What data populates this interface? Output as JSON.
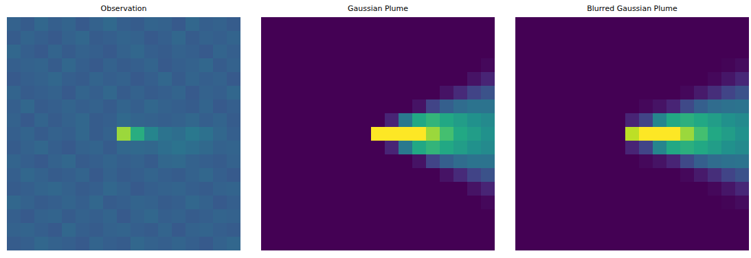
{
  "chart_data": [
    {
      "type": "heatmap",
      "title": "Observation",
      "tick_labels": false,
      "zlim": [
        0,
        1
      ],
      "cells": [
        [
          0.31,
          0.29,
          0.33,
          0.3,
          0.32,
          0.28,
          0.31,
          0.34,
          0.3,
          0.29,
          0.32,
          0.31,
          0.28,
          0.33,
          0.3,
          0.31,
          0.29
        ],
        [
          0.29,
          0.32,
          0.3,
          0.28,
          0.31,
          0.33,
          0.29,
          0.3,
          0.32,
          0.31,
          0.28,
          0.3,
          0.33,
          0.29,
          0.31,
          0.3,
          0.32
        ],
        [
          0.33,
          0.3,
          0.28,
          0.32,
          0.29,
          0.31,
          0.3,
          0.28,
          0.31,
          0.33,
          0.3,
          0.29,
          0.31,
          0.3,
          0.28,
          0.32,
          0.3
        ],
        [
          0.3,
          0.31,
          0.32,
          0.29,
          0.33,
          0.3,
          0.28,
          0.31,
          0.29,
          0.3,
          0.32,
          0.28,
          0.3,
          0.31,
          0.33,
          0.29,
          0.31
        ],
        [
          0.28,
          0.3,
          0.31,
          0.33,
          0.3,
          0.29,
          0.32,
          0.3,
          0.31,
          0.28,
          0.3,
          0.33,
          0.29,
          0.32,
          0.3,
          0.31,
          0.28
        ],
        [
          0.32,
          0.29,
          0.3,
          0.31,
          0.28,
          0.32,
          0.3,
          0.33,
          0.29,
          0.31,
          0.29,
          0.3,
          0.32,
          0.28,
          0.31,
          0.3,
          0.33
        ],
        [
          0.3,
          0.33,
          0.29,
          0.3,
          0.32,
          0.3,
          0.31,
          0.29,
          0.32,
          0.3,
          0.33,
          0.31,
          0.3,
          0.29,
          0.32,
          0.28,
          0.3
        ],
        [
          0.31,
          0.28,
          0.32,
          0.29,
          0.31,
          0.33,
          0.29,
          0.3,
          0.34,
          0.32,
          0.31,
          0.3,
          0.31,
          0.33,
          0.3,
          0.32,
          0.29
        ],
        [
          0.3,
          0.32,
          0.29,
          0.31,
          0.3,
          0.33,
          0.29,
          0.31,
          0.85,
          0.62,
          0.45,
          0.38,
          0.36,
          0.4,
          0.37,
          0.33,
          0.3
        ],
        [
          0.29,
          0.31,
          0.33,
          0.3,
          0.28,
          0.31,
          0.32,
          0.29,
          0.33,
          0.34,
          0.33,
          0.36,
          0.38,
          0.36,
          0.34,
          0.31,
          0.32
        ],
        [
          0.32,
          0.3,
          0.28,
          0.31,
          0.33,
          0.29,
          0.3,
          0.32,
          0.3,
          0.31,
          0.29,
          0.33,
          0.34,
          0.31,
          0.3,
          0.29,
          0.31
        ],
        [
          0.3,
          0.33,
          0.31,
          0.29,
          0.3,
          0.32,
          0.28,
          0.31,
          0.29,
          0.3,
          0.32,
          0.3,
          0.29,
          0.31,
          0.33,
          0.3,
          0.28
        ],
        [
          0.29,
          0.3,
          0.32,
          0.33,
          0.31,
          0.29,
          0.3,
          0.33,
          0.31,
          0.28,
          0.3,
          0.31,
          0.32,
          0.3,
          0.29,
          0.31,
          0.32
        ],
        [
          0.33,
          0.31,
          0.29,
          0.3,
          0.32,
          0.3,
          0.33,
          0.29,
          0.3,
          0.32,
          0.31,
          0.29,
          0.3,
          0.33,
          0.31,
          0.28,
          0.3
        ],
        [
          0.3,
          0.28,
          0.31,
          0.32,
          0.29,
          0.31,
          0.3,
          0.32,
          0.28,
          0.31,
          0.33,
          0.3,
          0.31,
          0.29,
          0.3,
          0.32,
          0.31
        ],
        [
          0.31,
          0.32,
          0.3,
          0.28,
          0.33,
          0.3,
          0.29,
          0.31,
          0.32,
          0.3,
          0.29,
          0.32,
          0.28,
          0.31,
          0.32,
          0.3,
          0.29
        ],
        [
          0.29,
          0.3,
          0.33,
          0.31,
          0.3,
          0.28,
          0.32,
          0.3,
          0.29,
          0.33,
          0.31,
          0.3,
          0.32,
          0.3,
          0.28,
          0.31,
          0.33
        ]
      ]
    },
    {
      "type": "heatmap",
      "title": "Gaussian Plume",
      "tick_labels": false,
      "zlim": [
        0,
        1
      ],
      "cells": [
        [
          0,
          0,
          0,
          0,
          0,
          0,
          0,
          0,
          0,
          0,
          0,
          0,
          0,
          0,
          0,
          0,
          0
        ],
        [
          0,
          0,
          0,
          0,
          0,
          0,
          0,
          0,
          0,
          0,
          0,
          0,
          0,
          0,
          0,
          0,
          0
        ],
        [
          0,
          0,
          0,
          0,
          0,
          0,
          0,
          0,
          0,
          0,
          0,
          0,
          0,
          0,
          0,
          0,
          0
        ],
        [
          0,
          0,
          0,
          0,
          0,
          0,
          0,
          0,
          0,
          0,
          0,
          0,
          0,
          0,
          0,
          0,
          0.02
        ],
        [
          0,
          0,
          0,
          0,
          0,
          0,
          0,
          0,
          0,
          0,
          0,
          0,
          0,
          0,
          0,
          0.05,
          0.1
        ],
        [
          0,
          0,
          0,
          0,
          0,
          0,
          0,
          0,
          0,
          0,
          0,
          0,
          0,
          0.05,
          0.12,
          0.2,
          0.25
        ],
        [
          0,
          0,
          0,
          0,
          0,
          0,
          0,
          0,
          0,
          0,
          0,
          0.05,
          0.2,
          0.3,
          0.35,
          0.38,
          0.38
        ],
        [
          0,
          0,
          0,
          0,
          0,
          0,
          0,
          0,
          0,
          0.1,
          0.4,
          0.6,
          0.65,
          0.6,
          0.55,
          0.5,
          0.47
        ],
        [
          0,
          0,
          0,
          0,
          0,
          0,
          0,
          0,
          1,
          1,
          1,
          1,
          0.85,
          0.7,
          0.6,
          0.55,
          0.5
        ],
        [
          0,
          0,
          0,
          0,
          0,
          0,
          0,
          0,
          0,
          0.1,
          0.4,
          0.6,
          0.65,
          0.6,
          0.55,
          0.5,
          0.47
        ],
        [
          0,
          0,
          0,
          0,
          0,
          0,
          0,
          0,
          0,
          0,
          0,
          0.05,
          0.2,
          0.3,
          0.35,
          0.38,
          0.38
        ],
        [
          0,
          0,
          0,
          0,
          0,
          0,
          0,
          0,
          0,
          0,
          0,
          0,
          0,
          0.05,
          0.12,
          0.2,
          0.25
        ],
        [
          0,
          0,
          0,
          0,
          0,
          0,
          0,
          0,
          0,
          0,
          0,
          0,
          0,
          0,
          0,
          0.05,
          0.1
        ],
        [
          0,
          0,
          0,
          0,
          0,
          0,
          0,
          0,
          0,
          0,
          0,
          0,
          0,
          0,
          0,
          0,
          0.02
        ],
        [
          0,
          0,
          0,
          0,
          0,
          0,
          0,
          0,
          0,
          0,
          0,
          0,
          0,
          0,
          0,
          0,
          0
        ],
        [
          0,
          0,
          0,
          0,
          0,
          0,
          0,
          0,
          0,
          0,
          0,
          0,
          0,
          0,
          0,
          0,
          0
        ],
        [
          0,
          0,
          0,
          0,
          0,
          0,
          0,
          0,
          0,
          0,
          0,
          0,
          0,
          0,
          0,
          0,
          0
        ]
      ]
    },
    {
      "type": "heatmap",
      "title": "Blurred Gaussian Plume",
      "tick_labels": false,
      "zlim": [
        0,
        1
      ],
      "cells": [
        [
          0,
          0,
          0,
          0,
          0,
          0,
          0,
          0,
          0,
          0,
          0,
          0,
          0,
          0,
          0,
          0,
          0
        ],
        [
          0,
          0,
          0,
          0,
          0,
          0,
          0,
          0,
          0,
          0,
          0,
          0,
          0,
          0,
          0,
          0,
          0
        ],
        [
          0,
          0,
          0,
          0,
          0,
          0,
          0,
          0,
          0,
          0,
          0,
          0,
          0,
          0,
          0,
          0,
          0
        ],
        [
          0,
          0,
          0,
          0,
          0,
          0,
          0,
          0,
          0,
          0,
          0,
          0,
          0,
          0,
          0,
          0.01,
          0.03
        ],
        [
          0,
          0,
          0,
          0,
          0,
          0,
          0,
          0,
          0,
          0,
          0,
          0,
          0,
          0,
          0.02,
          0.06,
          0.11
        ],
        [
          0,
          0,
          0,
          0,
          0,
          0,
          0,
          0,
          0,
          0,
          0,
          0,
          0.02,
          0.07,
          0.13,
          0.2,
          0.25
        ],
        [
          0,
          0,
          0,
          0,
          0,
          0,
          0,
          0,
          0,
          0.02,
          0.05,
          0.1,
          0.22,
          0.3,
          0.35,
          0.37,
          0.38
        ],
        [
          0,
          0,
          0,
          0,
          0,
          0,
          0,
          0,
          0.1,
          0.2,
          0.45,
          0.6,
          0.63,
          0.6,
          0.55,
          0.5,
          0.47
        ],
        [
          0,
          0,
          0,
          0,
          0,
          0,
          0,
          0,
          0.9,
          1,
          1,
          1,
          0.85,
          0.7,
          0.6,
          0.55,
          0.5
        ],
        [
          0,
          0,
          0,
          0,
          0,
          0,
          0,
          0,
          0.1,
          0.2,
          0.45,
          0.6,
          0.63,
          0.6,
          0.55,
          0.5,
          0.47
        ],
        [
          0,
          0,
          0,
          0,
          0,
          0,
          0,
          0,
          0,
          0.02,
          0.05,
          0.1,
          0.22,
          0.3,
          0.35,
          0.37,
          0.38
        ],
        [
          0,
          0,
          0,
          0,
          0,
          0,
          0,
          0,
          0,
          0,
          0,
          0,
          0.02,
          0.07,
          0.13,
          0.2,
          0.25
        ],
        [
          0,
          0,
          0,
          0,
          0,
          0,
          0,
          0,
          0,
          0,
          0,
          0,
          0,
          0,
          0.02,
          0.06,
          0.11
        ],
        [
          0,
          0,
          0,
          0,
          0,
          0,
          0,
          0,
          0,
          0,
          0,
          0,
          0,
          0,
          0,
          0.01,
          0.03
        ],
        [
          0,
          0,
          0,
          0,
          0,
          0,
          0,
          0,
          0,
          0,
          0,
          0,
          0,
          0,
          0,
          0,
          0
        ],
        [
          0,
          0,
          0,
          0,
          0,
          0,
          0,
          0,
          0,
          0,
          0,
          0,
          0,
          0,
          0,
          0,
          0
        ],
        [
          0,
          0,
          0,
          0,
          0,
          0,
          0,
          0,
          0,
          0,
          0,
          0,
          0,
          0,
          0,
          0,
          0
        ]
      ]
    }
  ]
}
